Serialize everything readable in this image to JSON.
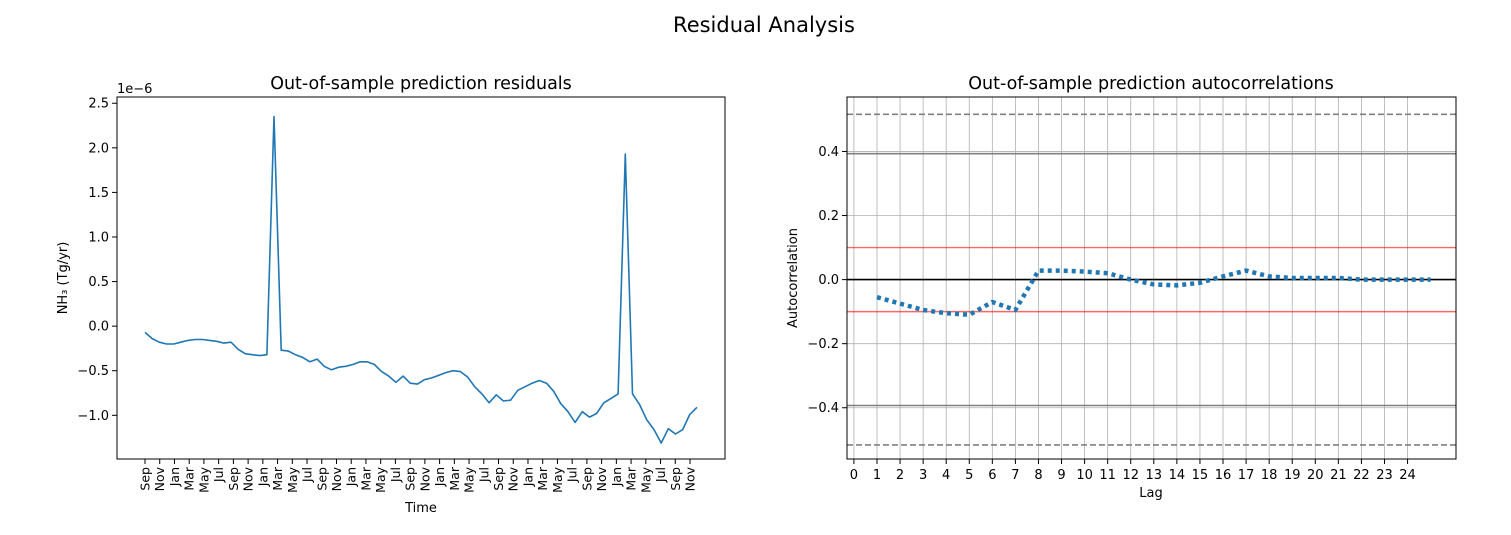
{
  "figure": {
    "suptitle": "Residual Analysis"
  },
  "colors": {
    "line": "#1f77b4",
    "ref": "#ff0000",
    "conf": "#808080",
    "grid": "#b0b0b0"
  },
  "chart_data": [
    {
      "type": "line",
      "title": "Out-of-sample prediction residuals",
      "xlabel": "Time",
      "ylabel": "NH₃ (Tg/yr)",
      "offset_text": "1e−6",
      "yscale": 1e-06,
      "ylim": [
        -1.49,
        2.57
      ],
      "yticks": [
        -1.0,
        -0.5,
        0.0,
        0.5,
        1.0,
        1.5,
        2.0,
        2.5
      ],
      "ytick_labels": [
        "−1.0",
        "−0.5",
        "0.0",
        "0.5",
        "1.0",
        "1.5",
        "2.0",
        "2.5"
      ],
      "xtick_labels": [
        "Sep",
        "Nov",
        "Jan",
        "Mar",
        "May",
        "Jul",
        "Sep",
        "Nov",
        "Jan",
        "Mar",
        "May",
        "Jul",
        "Sep",
        "Nov",
        "Jan",
        "Mar",
        "May",
        "Jul",
        "Sep",
        "Nov",
        "Jan",
        "Mar",
        "May",
        "Jul",
        "Sep",
        "Nov",
        "Jan",
        "Mar",
        "May",
        "Jul",
        "Sep",
        "Nov",
        "Jan",
        "Mar",
        "May",
        "Jul",
        "Sep",
        "Nov"
      ],
      "series": [
        {
          "values": [
            -0.07,
            -0.14,
            -0.18,
            -0.2,
            -0.2,
            -0.18,
            -0.16,
            -0.15,
            -0.15,
            -0.16,
            -0.17,
            -0.19,
            -0.18,
            -0.26,
            -0.31,
            -0.32,
            -0.33,
            -0.32,
            2.35,
            -0.27,
            -0.28,
            -0.32,
            -0.35,
            -0.4,
            -0.37,
            -0.45,
            -0.49,
            -0.46,
            -0.45,
            -0.43,
            -0.4,
            -0.4,
            -0.43,
            -0.51,
            -0.56,
            -0.63,
            -0.56,
            -0.64,
            -0.65,
            -0.6,
            -0.58,
            -0.55,
            -0.52,
            -0.5,
            -0.51,
            -0.57,
            -0.68,
            -0.76,
            -0.86,
            -0.77,
            -0.84,
            -0.83,
            -0.72,
            -0.68,
            -0.64,
            -0.61,
            -0.64,
            -0.73,
            -0.87,
            -0.96,
            -1.08,
            -0.96,
            -1.02,
            -0.98,
            -0.86,
            -0.81,
            -0.76,
            1.93,
            -0.76,
            -0.88,
            -1.05,
            -1.16,
            -1.31,
            -1.15,
            -1.21,
            -1.16,
            -0.99,
            -0.91
          ]
        }
      ]
    },
    {
      "type": "line",
      "title": "Out-of-sample prediction autocorrelations",
      "xlabel": "Lag",
      "ylabel": "Autocorrelation",
      "xlim": [
        -0.3,
        26.1
      ],
      "ylim": [
        -0.56,
        0.57
      ],
      "yticks": [
        -0.4,
        -0.2,
        0.0,
        0.2,
        0.4
      ],
      "ytick_labels": [
        "−0.4",
        "−0.2",
        "0.0",
        "0.2",
        "0.4"
      ],
      "xticks": [
        0,
        1,
        2,
        3,
        4,
        5,
        6,
        7,
        8,
        9,
        10,
        11,
        12,
        13,
        14,
        15,
        16,
        17,
        18,
        19,
        20,
        21,
        22,
        23,
        24
      ],
      "reference_lines": {
        "zero": 0.0,
        "red": [
          0.1,
          -0.1
        ],
        "gray_solid": [
          0.393,
          -0.393
        ],
        "gray_dashed": [
          0.516,
          -0.516
        ]
      },
      "series": [
        {
          "x": [
            1,
            2,
            3,
            4,
            5,
            6,
            7,
            8,
            9,
            10,
            11,
            12,
            13,
            14,
            15,
            16,
            17,
            18,
            19,
            20,
            21,
            22,
            23,
            24,
            25
          ],
          "values": [
            -0.055,
            -0.075,
            -0.095,
            -0.105,
            -0.11,
            -0.07,
            -0.095,
            0.028,
            0.028,
            0.025,
            0.02,
            0.0,
            -0.015,
            -0.018,
            -0.01,
            0.01,
            0.028,
            0.01,
            0.005,
            0.005,
            0.005,
            0.0,
            0.0,
            0.0,
            0.0
          ]
        }
      ]
    }
  ]
}
